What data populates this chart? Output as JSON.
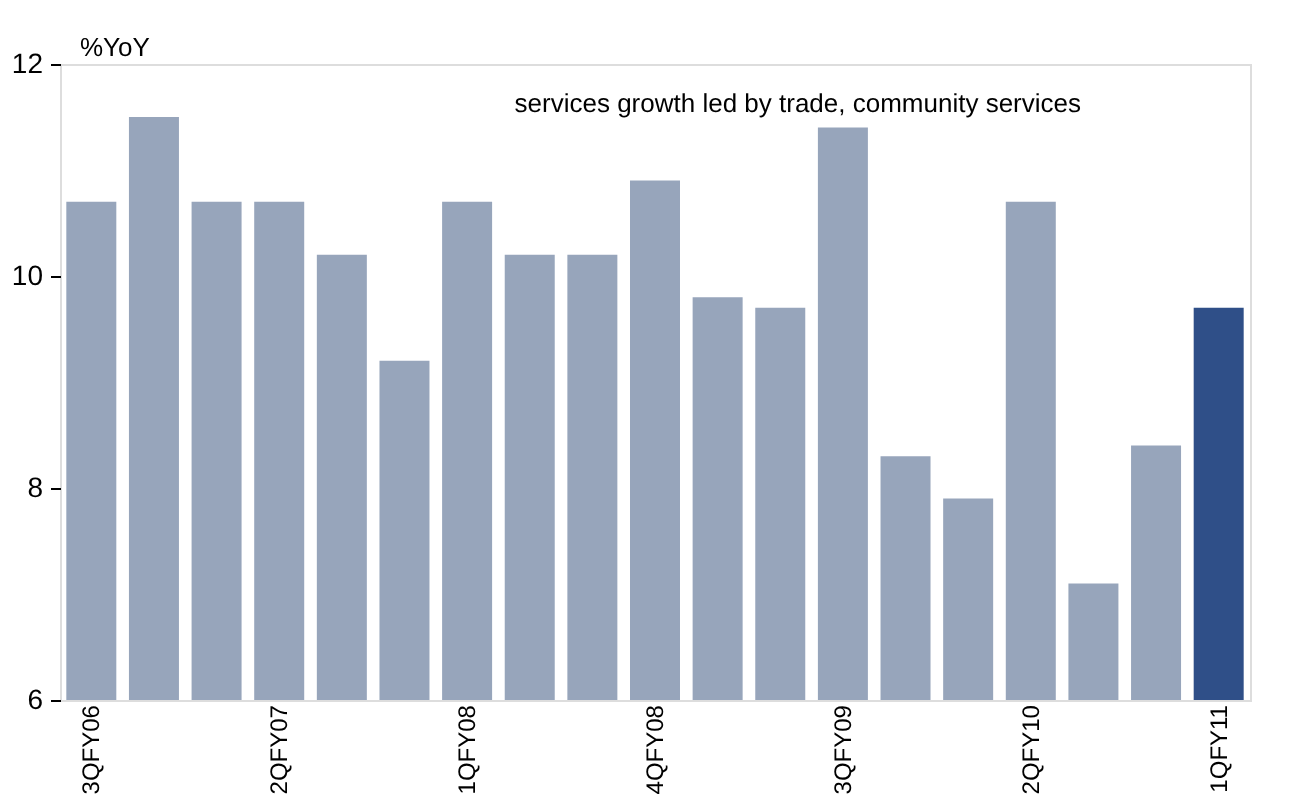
{
  "chart_data": {
    "type": "bar",
    "ylabel": "%YoY",
    "categories": [
      "3QFY06",
      null,
      null,
      "2QFY07",
      null,
      null,
      "1QFY08",
      null,
      null,
      "4QFY08",
      null,
      null,
      "3QFY09",
      null,
      null,
      "2QFY10",
      null,
      null,
      "1QFY11"
    ],
    "values": [
      10.7,
      11.5,
      10.7,
      10.7,
      10.2,
      9.2,
      10.7,
      10.2,
      10.2,
      10.9,
      9.8,
      9.7,
      11.4,
      8.3,
      7.9,
      10.7,
      7.1,
      8.4,
      9.7
    ],
    "colors": [
      "#97a5bb",
      "#97a5bb",
      "#97a5bb",
      "#97a5bb",
      "#97a5bb",
      "#97a5bb",
      "#97a5bb",
      "#97a5bb",
      "#97a5bb",
      "#97a5bb",
      "#97a5bb",
      "#97a5bb",
      "#97a5bb",
      "#97a5bb",
      "#97a5bb",
      "#97a5bb",
      "#97a5bb",
      "#97a5bb",
      "#2f4f88"
    ],
    "ylim": [
      6,
      12
    ],
    "yticks": [
      6,
      8,
      10,
      12
    ],
    "grid": false,
    "annotations": [
      "services growth led by trade, community services"
    ]
  }
}
